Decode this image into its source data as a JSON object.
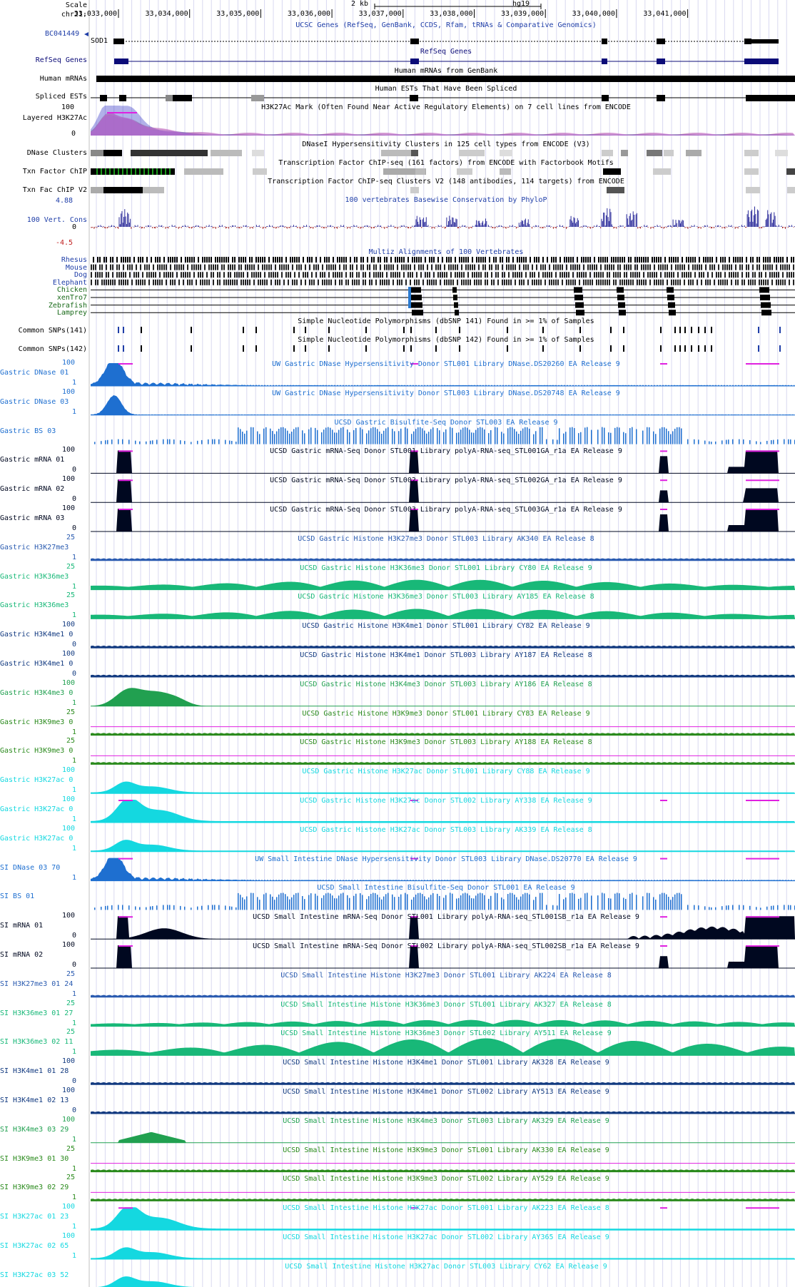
{
  "browser": {
    "scale_label": "Scale",
    "chrom_label": "chr21:",
    "scale_text": "2 kb",
    "assembly": "hg19",
    "positions": [
      "33,033,000",
      "33,034,000",
      "33,035,000",
      "33,036,000",
      "33,037,000",
      "33,038,000",
      "33,039,000",
      "33,040,000",
      "33,041,000"
    ]
  },
  "colors": {
    "ucsc_blue": "#1f3ea8",
    "refseq_navy": "#0c0c78",
    "black": "#000000",
    "gastric_dnase_blue": "#1e6fd0",
    "h3k27me3_blue": "#2a5bb0",
    "h3k36me3_green": "#18b878",
    "h3k4me1_navy": "#123a80",
    "h3k4me3_green": "#21a050",
    "h3k9me3_green": "#2a8a1c",
    "h3k27ac_cyan": "#14d8e0",
    "conservation_pos": "#2a2a9a",
    "conservation_neg": "#a02020",
    "clip_magenta": "#e020e0",
    "grid": "#d8d8f0"
  },
  "tracks": [
    {
      "key": "ucsc_genes",
      "label": "BC041449",
      "extra_label": "SOD1",
      "title": "UCSC Genes (RefSeq, GenBank, CCDS, Rfam, tRNAs & Comparative Genomics)",
      "color": "#1f3ea8"
    },
    {
      "key": "refseq",
      "label": "RefSeq Genes",
      "title": "RefSeq Genes",
      "color": "#0c0c78"
    },
    {
      "key": "mrna",
      "label": "Human mRNAs",
      "title": "Human mRNAs from GenBank",
      "color": "#000000"
    },
    {
      "key": "est",
      "label": "Spliced ESTs",
      "title": "Human ESTs That Have Been Spliced",
      "color": "#000000"
    },
    {
      "key": "h3k27ac_layered",
      "label": "Layered H3K27Ac",
      "title": "H3K27Ac Mark (Often Found Near Active Regulatory Elements) on 7 cell lines from ENCODE",
      "color": "#000000",
      "ymax": "100",
      "ymin": "0"
    },
    {
      "key": "dnase_clusters",
      "label": "DNase Clusters",
      "title": "DNaseI Hypersensitivity Clusters in 125 cell types from ENCODE (V3)",
      "color": "#000000"
    },
    {
      "key": "txn_chip",
      "label": "Txn Factor ChIP",
      "title": "Transcription Factor ChIP-seq (161 factors) from ENCODE with Factorbook Motifs",
      "color": "#000000"
    },
    {
      "key": "txn_chip_v2",
      "label": "Txn Fac ChIP V2",
      "title": "Transcription Factor ChIP-seq Clusters V2 (148 antibodies, 114 targets) from ENCODE",
      "color": "#000000"
    },
    {
      "key": "cons",
      "label": "100 Vert. Cons",
      "title": "100 vertebrates Basewise Conservation by PhyloP",
      "color": "#1f3ea8",
      "ymax": "4.88",
      "ymid": "0",
      "ymin": "-4.5"
    },
    {
      "key": "multiz",
      "label": "Multiz Alignments of 100 Vertebrates",
      "title": "Multiz Alignments of 100 Vertebrates",
      "species": [
        "Rhesus",
        "Mouse",
        "Dog",
        "Elephant",
        "Chicken",
        "xenTro7",
        "Zebrafish",
        "Lamprey"
      ]
    },
    {
      "key": "snp141",
      "label": "Common SNPs(141)",
      "title": "Simple Nucleotide Polymorphisms (dbSNP 141) Found in >= 1% of Samples",
      "color": "#000000"
    },
    {
      "key": "snp142",
      "label": "Common SNPs(142)",
      "title": "Simple Nucleotide Polymorphisms (dbSNP 142) Found in >= 1% of Samples",
      "color": "#000000"
    }
  ],
  "signal_tracks": [
    {
      "label": "Gastric DNase 01",
      "title": "UW Gastric DNase Hypersensitivity Donor STL001 Library DNase.DS20260 EA Release 9",
      "color": "#1e6fd0",
      "ymax": "100",
      "ymin": "1",
      "kind": "dnase"
    },
    {
      "label": "Gastric DNase 03",
      "title": "UW Gastric DNase Hypersensitivity Donor STL003 Library DNase.DS20748 EA Release 9",
      "color": "#1e6fd0",
      "ymax": "100",
      "ymin": "1",
      "kind": "dnase_small"
    },
    {
      "label": "Gastric BS 03",
      "title": "UCSD Gastric Bisulfite-Seq Donor STL003 EA Release 9",
      "color": "#1e6fd0",
      "ymax": "",
      "ymin": "",
      "kind": "bs"
    },
    {
      "label": "Gastric mRNA 01",
      "title": "UCSD Gastric mRNA-Seq Donor STL001 Library polyA-RNA-seq_STL001GA_r1a EA Release 9",
      "color": "#000820",
      "ymax": "100",
      "ymin": "0",
      "kind": "mrna"
    },
    {
      "label": "Gastric mRNA 02",
      "title": "UCSD Gastric mRNA-Seq Donor STL002 Library polyA-RNA-seq_STL002GA_r1a EA Release 9",
      "color": "#000820",
      "ymax": "100",
      "ymin": "0",
      "kind": "mrna"
    },
    {
      "label": "Gastric mRNA 03",
      "title": "UCSD Gastric mRNA-Seq Donor STL003 Library polyA-RNA-seq_STL003GA_r1a EA Release 9",
      "color": "#000820",
      "ymax": "100",
      "ymin": "0",
      "kind": "mrna"
    },
    {
      "label": "Gastric H3K27me3",
      "title": "UCSD Gastric Histone H3K27me3 Donor STL003 Library AK340 EA Release 8",
      "color": "#2a5bb0",
      "ymax": "25",
      "ymin": "1",
      "kind": "flat"
    },
    {
      "label": "Gastric H3K36me3",
      "title": "UCSD Gastric Histone H3K36me3 Donor STL001 Library CY80 EA Release 9",
      "color": "#18b878",
      "ymax": "25",
      "ymin": "1",
      "kind": "broad"
    },
    {
      "label": "Gastric H3K36me3",
      "title": "UCSD Gastric Histone H3K36me3 Donor STL003 Library AY185 EA Release 8",
      "color": "#18b878",
      "ymax": "25",
      "ymin": "1",
      "kind": "broad"
    },
    {
      "label": "Gastric H3K4me1 0",
      "title": "UCSD Gastric Histone H3K4me1 Donor STL001 Library CY82 EA Release 9",
      "color": "#123a80",
      "ymax": "100",
      "ymin": "0",
      "kind": "flat"
    },
    {
      "label": "Gastric H3K4me1 0",
      "title": "UCSD Gastric Histone H3K4me1 Donor STL003 Library AY187 EA Release 8",
      "color": "#123a80",
      "ymax": "100",
      "ymin": "0",
      "kind": "flat"
    },
    {
      "label": "Gastric H3K4me3 0",
      "title": "UCSD Gastric Histone H3K4me3 Donor STL003 Library AY186 EA Release 8",
      "color": "#21a050",
      "ymax": "100",
      "ymin": "1",
      "kind": "k4me3"
    },
    {
      "label": "Gastric H3K9me3 0",
      "title": "UCSD Gastric Histone H3K9me3 Donor STL001 Library CY83 EA Release 9",
      "color": "#2a8a1c",
      "ymax": "25",
      "ymin": "1",
      "kind": "flat"
    },
    {
      "label": "Gastric H3K9me3 0",
      "title": "UCSD Gastric Histone H3K9me3 Donor STL003 Library AY188 EA Release 8",
      "color": "#2a8a1c",
      "ymax": "25",
      "ymin": "1",
      "kind": "flat"
    },
    {
      "label": "Gastric H3K27ac 0",
      "title": "UCSD Gastric Histone H3K27ac Donor STL001 Library CY88 EA Release 9",
      "color": "#14d8e0",
      "ymax": "100",
      "ymin": "1",
      "kind": "k27ac"
    },
    {
      "label": "Gastric H3K27ac 0",
      "title": "UCSD Gastric Histone H3K27ac Donor STL002 Library AY338 EA Release 9",
      "color": "#14d8e0",
      "ymax": "100",
      "ymin": "1",
      "kind": "k27ac_big"
    },
    {
      "label": "Gastric H3K27ac 0",
      "title": "UCSD Gastric Histone H3K27ac Donor STL003 Library AK339 EA Release 8",
      "color": "#14d8e0",
      "ymax": "100",
      "ymin": "1",
      "kind": "k27ac"
    },
    {
      "label": "SI DNase 03 70",
      "title": "UW Small Intestine DNase Hypersensitivity Donor STL003 Library DNase.DS20770 EA Release 9",
      "color": "#1e6fd0",
      "ymax": "",
      "ymin": "1",
      "kind": "dnase"
    },
    {
      "label": "SI BS 01",
      "title": "UCSD Small Intestine Bisulfite-Seq Donor STL001 EA Release 9",
      "color": "#1e6fd0",
      "ymax": "",
      "ymin": "",
      "kind": "bs"
    },
    {
      "label": "SI mRNA 01",
      "title": "UCSD Small Intestine mRNA-Seq Donor STL001 Library polyA-RNA-seq_STL001SB_r1a EA Release 9",
      "color": "#000820",
      "ymax": "100",
      "ymin": "0",
      "kind": "mrna_si"
    },
    {
      "label": "SI mRNA 02",
      "title": "UCSD Small Intestine mRNA-Seq Donor STL002 Library polyA-RNA-seq_STL002SB_r1a EA Release 9",
      "color": "#000820",
      "ymax": "100",
      "ymin": "0",
      "kind": "mrna"
    },
    {
      "label": "SI H3K27me3 01 24",
      "title": "UCSD Small Intestine Histone H3K27me3 Donor STL001 Library AK224 EA Release 8",
      "color": "#2a5bb0",
      "ymax": "25",
      "ymin": "1",
      "kind": "flat"
    },
    {
      "label": "SI H3K36me3 01 27",
      "title": "UCSD Small Intestine Histone H3K36me3 Donor STL001 Library AK327 EA Release 8",
      "color": "#18b878",
      "ymax": "25",
      "ymin": "1",
      "kind": "broad_small"
    },
    {
      "label": "SI H3K36me3 02 11",
      "title": "UCSD Small Intestine Histone H3K36me3 Donor STL002 Library AY511 EA Release 9",
      "color": "#18b878",
      "ymax": "25",
      "ymin": "1",
      "kind": "broad_big"
    },
    {
      "label": "SI H3K4me1 01 28",
      "title": "UCSD Small Intestine Histone H3K4me1 Donor STL001 Library AK328 EA Release 9",
      "color": "#123a80",
      "ymax": "100",
      "ymin": "0",
      "kind": "flat"
    },
    {
      "label": "SI H3K4me1 02 13",
      "title": "UCSD Small Intestine Histone H3K4me1 Donor STL002 Library AY513 EA Release 9",
      "color": "#123a80",
      "ymax": "100",
      "ymin": "0",
      "kind": "flat"
    },
    {
      "label": "SI H3K4me3 03 29",
      "title": "UCSD Small Intestine Histone H3K4me3 Donor STL003 Library AK329 EA Release 9",
      "color": "#21a050",
      "ymax": "100",
      "ymin": "1",
      "kind": "k4me3_si"
    },
    {
      "label": "SI H3K9me3 01 30",
      "title": "UCSD Small Intestine Histone H3K9me3 Donor STL001 Library AK330 EA Release 9",
      "color": "#2a8a1c",
      "ymax": "25",
      "ymin": "1",
      "kind": "flat"
    },
    {
      "label": "SI H3K9me3 02 29",
      "title": "UCSD Small Intestine Histone H3K9me3 Donor STL002 Library AY529 EA Release 9",
      "color": "#2a8a1c",
      "ymax": "25",
      "ymin": "1",
      "kind": "flat"
    },
    {
      "label": "SI H3K27ac 01 23",
      "title": "UCSD Small Intestine Histone H3K27ac Donor STL001 Library AK223 EA Release 8",
      "color": "#14d8e0",
      "ymax": "100",
      "ymin": "1",
      "kind": "k27ac_big"
    },
    {
      "label": "SI H3K27ac 02 65",
      "title": "UCSD Small Intestine Histone H3K27ac Donor STL002 Library AY365 EA Release 9",
      "color": "#14d8e0",
      "ymax": "100",
      "ymin": "1",
      "kind": "k27ac"
    },
    {
      "label": "SI H3K27ac 03 52",
      "title": "UCSD Small Intestine Histone H3K27ac Donor STL003 Library CY62 EA Release 9",
      "color": "#14d8e0",
      "ymax": "",
      "ymin": "",
      "kind": "k27ac"
    }
  ]
}
